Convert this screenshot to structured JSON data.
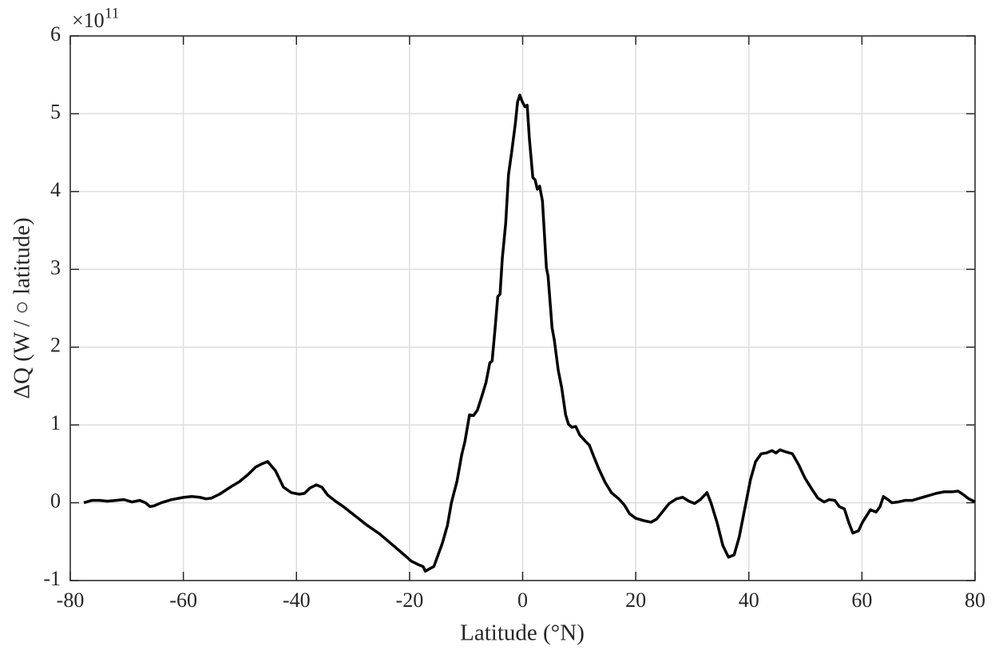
{
  "chart_data": {
    "type": "line",
    "xlabel": "Latitude (°N)",
    "ylabel": "ΔQ (W / ○ latitude)",
    "y_exponent_base": "×10",
    "y_exponent": "11",
    "x": [
      -77.6,
      -76.2,
      -74.8,
      -73.4,
      -71.9,
      -70.5,
      -69.1,
      -67.7,
      -66.7,
      -65.9,
      -65.2,
      -63.9,
      -62.1,
      -59.9,
      -58.5,
      -57.1,
      -56.0,
      -55.0,
      -53.6,
      -51.5,
      -50.1,
      -48.6,
      -47.2,
      -46.1,
      -45.1,
      -43.7,
      -42.3,
      -40.9,
      -39.5,
      -38.6,
      -37.6,
      -36.5,
      -35.5,
      -34.5,
      -33.1,
      -31.7,
      -29.6,
      -27.5,
      -25.3,
      -23.2,
      -21.1,
      -19.7,
      -18.3,
      -17.6,
      -17.2,
      -16.5,
      -15.7,
      -15.0,
      -14.2,
      -13.3,
      -12.6,
      -11.6,
      -10.8,
      -10.2,
      -9.4,
      -8.7,
      -8.0,
      -7.3,
      -6.5,
      -5.8,
      -5.4,
      -4.9,
      -4.4,
      -4.0,
      -3.6,
      -3.0,
      -2.5,
      -1.9,
      -1.3,
      -0.9,
      -0.5,
      -0.1,
      0.4,
      0.8,
      1.2,
      1.8,
      2.2,
      2.6,
      3.0,
      3.5,
      4.2,
      4.5,
      5.2,
      5.6,
      6.3,
      6.9,
      7.6,
      8.1,
      8.7,
      9.4,
      10.1,
      11.1,
      11.8,
      12.6,
      13.5,
      14.6,
      15.7,
      17.0,
      18.0,
      18.9,
      20.0,
      21.4,
      22.7,
      23.7,
      24.8,
      25.9,
      27.2,
      28.3,
      29.4,
      30.4,
      31.4,
      32.6,
      33.3,
      34.4,
      35.4,
      36.4,
      37.4,
      38.3,
      39.3,
      40.3,
      41.2,
      42.2,
      43.1,
      44.1,
      44.8,
      45.5,
      46.7,
      47.7,
      48.8,
      49.9,
      51.1,
      52.2,
      53.3,
      54.2,
      55.2,
      56.0,
      56.9,
      57.7,
      58.4,
      59.4,
      60.1,
      61.5,
      62.5,
      63.2,
      63.8,
      64.6,
      65.3,
      66.4,
      67.6,
      68.9,
      70.3,
      71.7,
      73.1,
      74.5,
      75.9,
      77.0,
      78.0,
      78.9,
      80.0
    ],
    "series": [
      {
        "color": "#000000",
        "values": [
          0.0,
          0.03,
          0.03,
          0.02,
          0.03,
          0.04,
          0.01,
          0.03,
          0.0,
          -0.05,
          -0.04,
          0.0,
          0.04,
          0.07,
          0.08,
          0.07,
          0.05,
          0.06,
          0.11,
          0.21,
          0.27,
          0.36,
          0.46,
          0.5,
          0.53,
          0.41,
          0.2,
          0.13,
          0.11,
          0.12,
          0.19,
          0.23,
          0.2,
          0.1,
          0.02,
          -0.05,
          -0.17,
          -0.29,
          -0.4,
          -0.53,
          -0.66,
          -0.75,
          -0.8,
          -0.82,
          -0.88,
          -0.85,
          -0.82,
          -0.68,
          -0.52,
          -0.29,
          0.0,
          0.28,
          0.61,
          0.79,
          1.13,
          1.12,
          1.19,
          1.35,
          1.54,
          1.8,
          1.82,
          2.22,
          2.65,
          2.68,
          3.14,
          3.59,
          4.22,
          4.53,
          4.87,
          5.15,
          5.24,
          5.16,
          5.09,
          5.11,
          4.67,
          4.18,
          4.15,
          4.03,
          4.07,
          3.88,
          3.02,
          2.91,
          2.25,
          2.09,
          1.7,
          1.48,
          1.13,
          1.01,
          0.97,
          0.98,
          0.87,
          0.79,
          0.74,
          0.59,
          0.43,
          0.26,
          0.13,
          0.05,
          -0.03,
          -0.14,
          -0.2,
          -0.23,
          -0.25,
          -0.21,
          -0.11,
          -0.01,
          0.05,
          0.07,
          0.02,
          -0.01,
          0.04,
          0.13,
          0.0,
          -0.26,
          -0.55,
          -0.7,
          -0.67,
          -0.44,
          -0.07,
          0.3,
          0.53,
          0.63,
          0.64,
          0.67,
          0.64,
          0.68,
          0.65,
          0.63,
          0.49,
          0.32,
          0.18,
          0.06,
          0.01,
          0.04,
          0.03,
          -0.05,
          -0.08,
          -0.26,
          -0.39,
          -0.36,
          -0.25,
          -0.09,
          -0.12,
          -0.05,
          0.08,
          0.04,
          0.0,
          0.01,
          0.03,
          0.03,
          0.06,
          0.09,
          0.12,
          0.14,
          0.14,
          0.15,
          0.1,
          0.05,
          0.01
        ]
      }
    ],
    "xlim": [
      -80,
      80
    ],
    "xticks": [
      -80,
      -60,
      -40,
      -20,
      0,
      20,
      40,
      60,
      80
    ],
    "ylim": [
      -1,
      6
    ],
    "yticks": [
      -1,
      0,
      1,
      2,
      3,
      4,
      5,
      6
    ],
    "grid": true
  }
}
